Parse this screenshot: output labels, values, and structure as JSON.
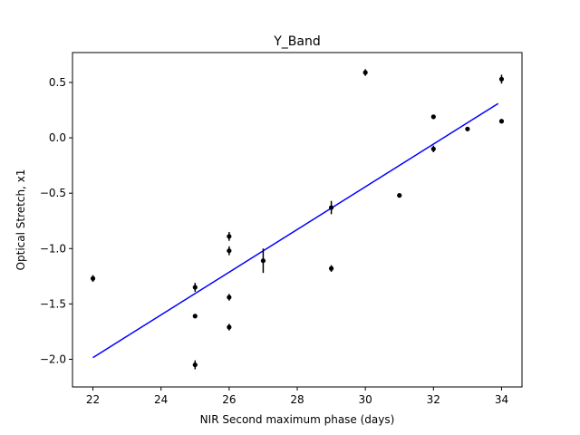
{
  "chart_data": {
    "type": "scatter",
    "title": "Y_Band",
    "xlabel": "NIR Second maximum phase (days)",
    "ylabel": "Optical Stretch, x1",
    "xlim": [
      21.4,
      34.6
    ],
    "ylim": [
      -2.25,
      0.77
    ],
    "xticks": [
      22,
      24,
      26,
      28,
      30,
      32,
      34
    ],
    "yticks": [
      -2.0,
      -1.5,
      -1.0,
      -0.5,
      0.0,
      0.5
    ],
    "xtick_labels": [
      "22",
      "24",
      "26",
      "28",
      "30",
      "32",
      "34"
    ],
    "ytick_labels": [
      "−2.0",
      "−1.5",
      "−1.0",
      "−0.5",
      "0.0",
      "0.5"
    ],
    "grid": false,
    "points": [
      {
        "x": 22,
        "y": -1.27,
        "yerr": 0.03
      },
      {
        "x": 25,
        "y": -1.35,
        "yerr": 0.04
      },
      {
        "x": 25,
        "y": -1.61,
        "yerr": 0.02
      },
      {
        "x": 25,
        "y": -2.05,
        "yerr": 0.04
      },
      {
        "x": 26,
        "y": -0.89,
        "yerr": 0.04
      },
      {
        "x": 26,
        "y": -1.02,
        "yerr": 0.04
      },
      {
        "x": 26,
        "y": -1.44,
        "yerr": 0.03
      },
      {
        "x": 26,
        "y": -1.71,
        "yerr": 0.03
      },
      {
        "x": 27,
        "y": -1.11,
        "yerr": 0.11
      },
      {
        "x": 29,
        "y": -0.63,
        "yerr": 0.06
      },
      {
        "x": 29,
        "y": -1.18,
        "yerr": 0.03
      },
      {
        "x": 30,
        "y": 0.59,
        "yerr": 0.03
      },
      {
        "x": 31,
        "y": -0.52,
        "yerr": 0.01
      },
      {
        "x": 32,
        "y": 0.19,
        "yerr": 0.01
      },
      {
        "x": 32,
        "y": -0.1,
        "yerr": 0.03
      },
      {
        "x": 33,
        "y": 0.08,
        "yerr": 0.01
      },
      {
        "x": 34,
        "y": 0.53,
        "yerr": 0.04
      },
      {
        "x": 34,
        "y": 0.15,
        "yerr": 0.01
      }
    ],
    "fit_line": {
      "x": [
        22,
        33.9
      ],
      "y": [
        -1.985,
        0.31
      ]
    },
    "colors": {
      "points": "#000000",
      "fit": "#0000ff",
      "axes": "#000000"
    }
  }
}
